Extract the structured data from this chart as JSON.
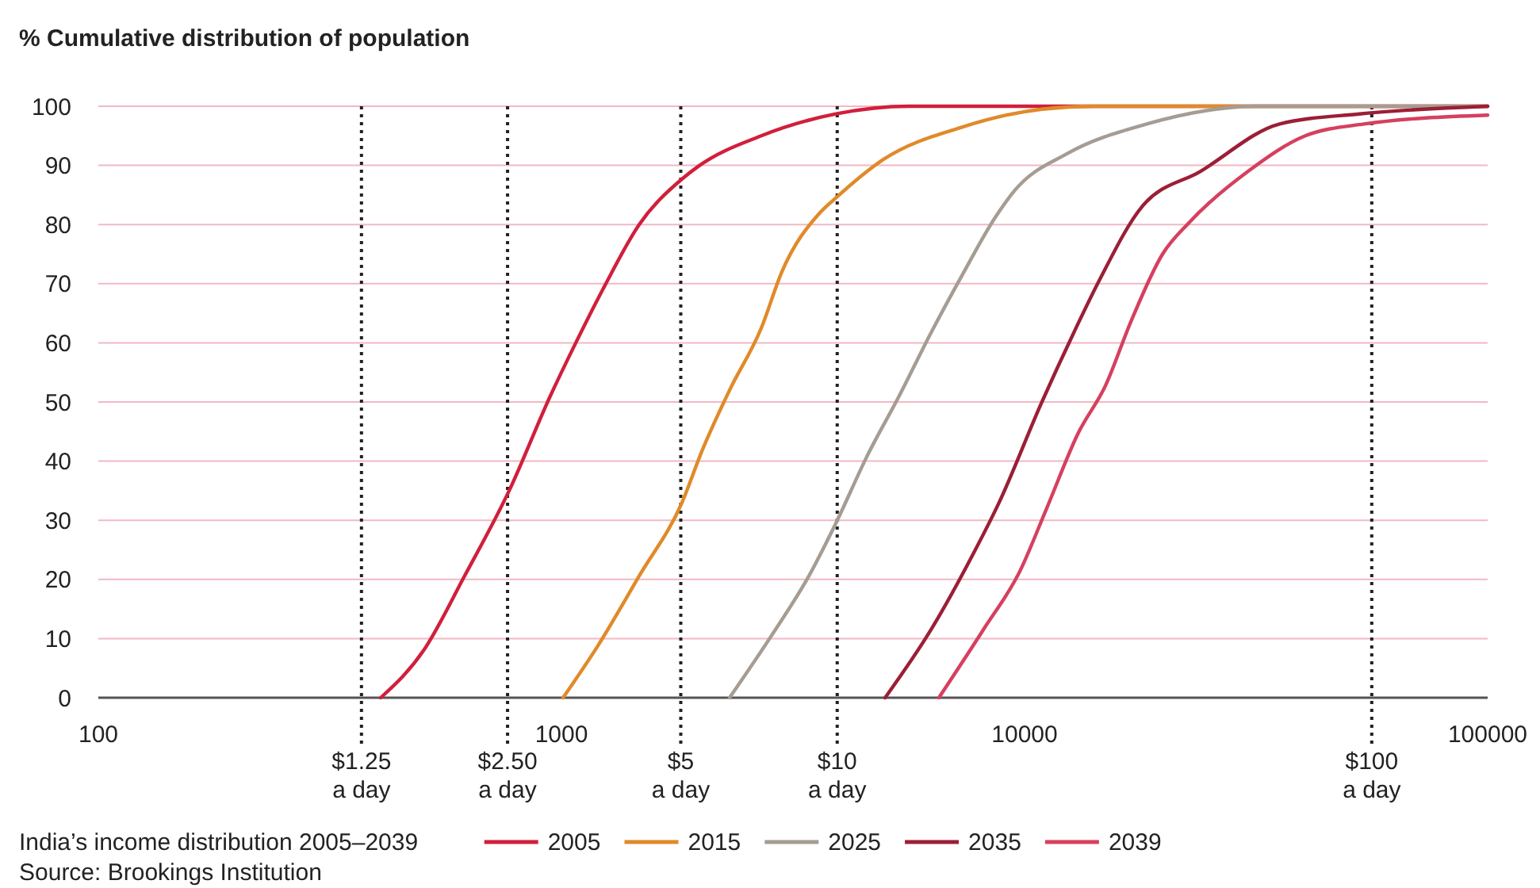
{
  "chart_data": {
    "type": "line",
    "title": "% Cumulative distribution of population",
    "legend_title": "India’s income distribution 2005–2039",
    "annotations": [
      "Source: Brookings Institution"
    ],
    "log": "x",
    "grid": "y",
    "legend": "bottom",
    "line_style": "solid",
    "xlim": [
      100,
      100000
    ],
    "xticks": [
      100,
      1000,
      10000,
      100000
    ],
    "ylim": [
      0,
      100
    ],
    "yticks": [
      0,
      10,
      20,
      30,
      40,
      50,
      60,
      70,
      80,
      90,
      100
    ],
    "ref_lines": [
      {
        "axis": "x",
        "value": 370,
        "label": "$1.25 a day",
        "color": "#222222",
        "line_style": "dotted"
      },
      {
        "axis": "x",
        "value": 765,
        "label": "$2.50 a day",
        "color": "#222222",
        "line_style": "dotted"
      },
      {
        "axis": "x",
        "value": 1810,
        "label": "$5 a day",
        "color": "#222222",
        "line_style": "dotted"
      },
      {
        "axis": "x",
        "value": 3940,
        "label": "$10 a day",
        "color": "#222222",
        "line_style": "dotted"
      },
      {
        "axis": "x",
        "value": 56200,
        "label": "$100 a day",
        "color": "#222222",
        "line_style": "dotted"
      }
    ],
    "series": [
      {
        "name": "2005",
        "color": "#d11f3c",
        "x": [
          407,
          504,
          618,
          771,
          946,
          1074,
          1228,
          1472,
          1821,
          1971,
          2701,
          3913,
          5623,
          100000
        ],
        "values": [
          0,
          8,
          20.6,
          35,
          51,
          60,
          69,
          80,
          87.7,
          89.8,
          95,
          98.7,
          100,
          100
        ]
      },
      {
        "name": "2015",
        "color": "#e08a2a",
        "x": [
          1008,
          1199,
          1472,
          1821,
          2018,
          2307,
          2701,
          2992,
          3616,
          3913,
          4955,
          7352,
          10900,
          14150,
          100000
        ],
        "values": [
          0,
          8.8,
          20.6,
          33,
          42,
          52,
          62.5,
          72,
          82,
          84.5,
          91,
          96.5,
          99.5,
          100,
          100
        ]
      },
      {
        "name": "2025",
        "color": "#a59c93",
        "x": [
          2307,
          2853,
          3423,
          3913,
          4581,
          5360,
          6281,
          7352,
          8610,
          9532,
          12370,
          18350,
          27220,
          31130,
          100000
        ],
        "values": [
          0,
          10.7,
          20.6,
          29.5,
          41,
          51,
          61.7,
          71.6,
          81,
          85.8,
          92,
          97,
          99.7,
          100,
          100
        ]
      },
      {
        "name": "2035",
        "color": "#9b1f36",
        "x": [
          5000,
          6281,
          7708,
          8810,
          10900,
          12770,
          14490,
          17920,
          23990,
          35560,
          52830,
          100000
        ],
        "values": [
          0,
          11.5,
          24,
          33,
          50,
          61.7,
          70.5,
          83,
          89,
          97,
          98.7,
          100
        ]
      },
      {
        "name": "2039",
        "color": "#d6405f",
        "x": [
          6531,
          8147,
          9772,
          11160,
          13070,
          14960,
          16950,
          19860,
          22710,
          30390,
          40380,
          54070,
          100000
        ],
        "values": [
          0,
          11.5,
          21.4,
          32,
          44.8,
          52.8,
          63.5,
          75,
          80.4,
          89,
          95,
          97,
          98.5
        ]
      }
    ]
  }
}
